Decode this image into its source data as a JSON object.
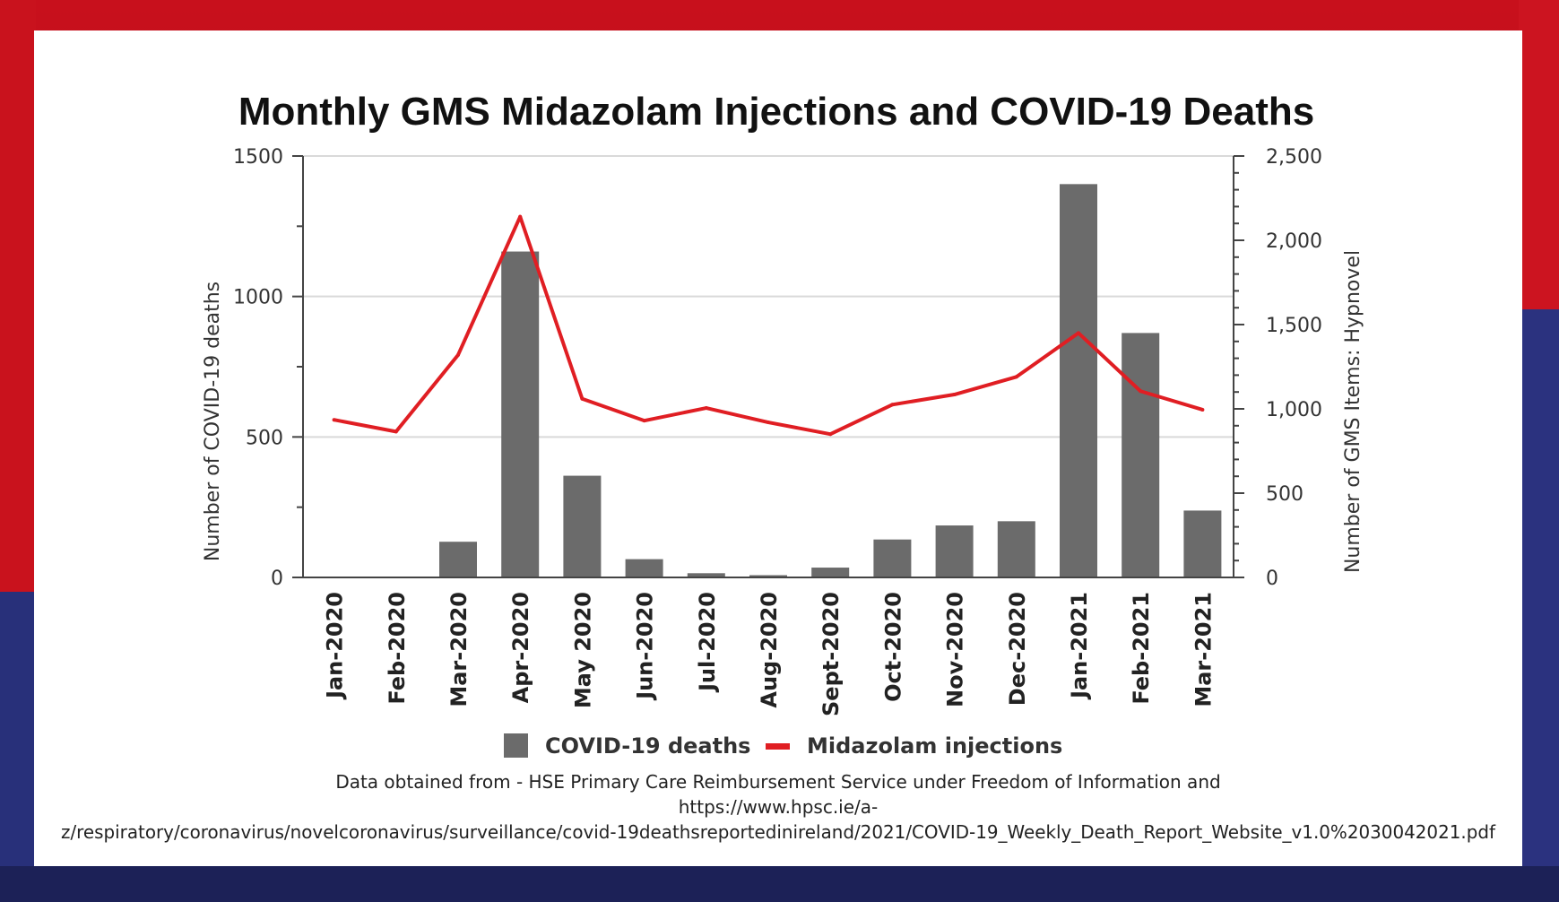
{
  "chart_data": {
    "type": "bar",
    "title": "Monthly GMS Midazolam Injections and COVID-19 Deaths",
    "categories": [
      "Jan-2020",
      "Feb-2020",
      "Mar-2020",
      "Apr-2020",
      "May 2020",
      "Jun-2020",
      "Jul-2020",
      "Aug-2020",
      "Sept-2020",
      "Oct-2020",
      "Nov-2020",
      "Dec-2020",
      "Jan-2021",
      "Feb-2021",
      "Mar-2021"
    ],
    "series": [
      {
        "name": "COVID-19 deaths",
        "type": "bar",
        "axis": "left",
        "color": "#6b6b6b",
        "values": [
          0,
          0,
          127,
          1160,
          362,
          65,
          15,
          8,
          35,
          135,
          185,
          200,
          1400,
          870,
          238
        ]
      },
      {
        "name": "Midazolam injections",
        "type": "line",
        "axis": "right",
        "color": "#e01e23",
        "values": [
          935,
          865,
          1320,
          2140,
          1060,
          930,
          1005,
          920,
          850,
          1025,
          1085,
          1190,
          1450,
          1105,
          995
        ]
      }
    ],
    "ylabel": "Number of COVID-19 deaths",
    "ylim": [
      0,
      1500
    ],
    "yticks": [
      "0",
      "500",
      "1000",
      "1500"
    ],
    "y2label": "Number of GMS Items: Hypnovel",
    "y2lim": [
      0,
      2500
    ],
    "y2ticks": [
      "0",
      "500",
      "1,000",
      "1,500",
      "2,000",
      "2,500"
    ],
    "grid": true,
    "legend_position": "bottom",
    "source_line1": "Data obtained from -  HSE Primary Care Reimbursement Service under Freedom of Information and",
    "source_line2": "https://www.hpsc.ie/a-",
    "source_line3": "z/respiratory/coronavirus/novelcoronavirus/surveillance/covid-19deathsreportedinireland/2021/COVID-19_Weekly_Death_Report_Website_v1.0%2030042021.pdf"
  }
}
